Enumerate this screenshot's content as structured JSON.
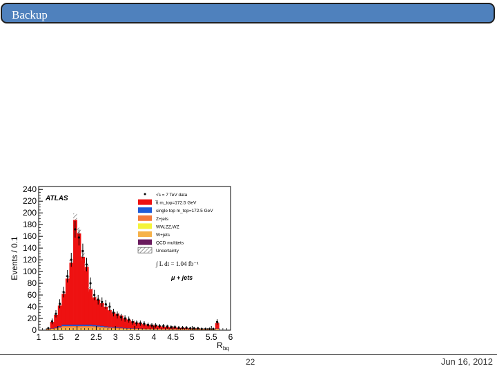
{
  "slide": {
    "title": "Backup",
    "page_number": "22",
    "date": "Jun 16, 2012"
  },
  "chart_data": {
    "type": "bar",
    "experiment_label": "ATLAS",
    "channel_label": "μ + jets",
    "lumi_label": "∫ L dt = 1.04 fb⁻¹",
    "xlabel": "R",
    "xlabel_sub": "bq",
    "ylabel": "Events / 0.1",
    "xlim": [
      1,
      6
    ],
    "ylim": [
      0,
      245
    ],
    "xticks": [
      "1",
      "1.5",
      "2",
      "2.5",
      "3",
      "3.5",
      "4",
      "4.5",
      "5",
      "5.5",
      "6"
    ],
    "yticks": [
      "0",
      "20",
      "40",
      "60",
      "80",
      "100",
      "120",
      "140",
      "160",
      "180",
      "200",
      "220",
      "240"
    ],
    "bin_width": 0.1,
    "bin_edges_start": 1.2,
    "total": [
      2,
      14,
      26,
      42,
      62,
      88,
      115,
      188,
      165,
      125,
      108,
      70,
      56,
      52,
      46,
      40,
      34,
      30,
      28,
      25,
      20,
      18,
      15,
      13,
      12,
      10,
      9,
      9,
      8,
      7,
      6,
      6,
      5,
      5,
      4,
      4,
      4,
      3,
      3,
      3,
      2,
      2,
      2,
      2,
      12
    ],
    "data": [
      3,
      15,
      28,
      45,
      65,
      92,
      120,
      172,
      158,
      135,
      112,
      80,
      60,
      52,
      48,
      44,
      40,
      30,
      26,
      22,
      20,
      18,
      14,
      12,
      12,
      11,
      9,
      8,
      8,
      7,
      7,
      6,
      5,
      5,
      4,
      4,
      4,
      3,
      3,
      3,
      2,
      2,
      2,
      2,
      14
    ],
    "legend": [
      {
        "label": "√s = 7 TeV data",
        "kind": "data",
        "color": "#000000"
      },
      {
        "label": "t̅t m_top=172.5 GeV",
        "kind": "fill",
        "color": "#ee1111"
      },
      {
        "label": "single top m_top=172.5 GeV",
        "kind": "fill",
        "color": "#1e5bd8"
      },
      {
        "label": "Z+jets",
        "kind": "fill",
        "color": "#f47a3c"
      },
      {
        "label": "WW,ZZ,WZ",
        "kind": "fill",
        "color": "#f4f43a"
      },
      {
        "label": "W+jets",
        "kind": "fill",
        "color": "#f6b24a"
      },
      {
        "label": "QCD multijets",
        "kind": "fill",
        "color": "#6a1b5e"
      },
      {
        "label": "Uncertainty",
        "kind": "hatch",
        "color": "#888888"
      }
    ]
  }
}
